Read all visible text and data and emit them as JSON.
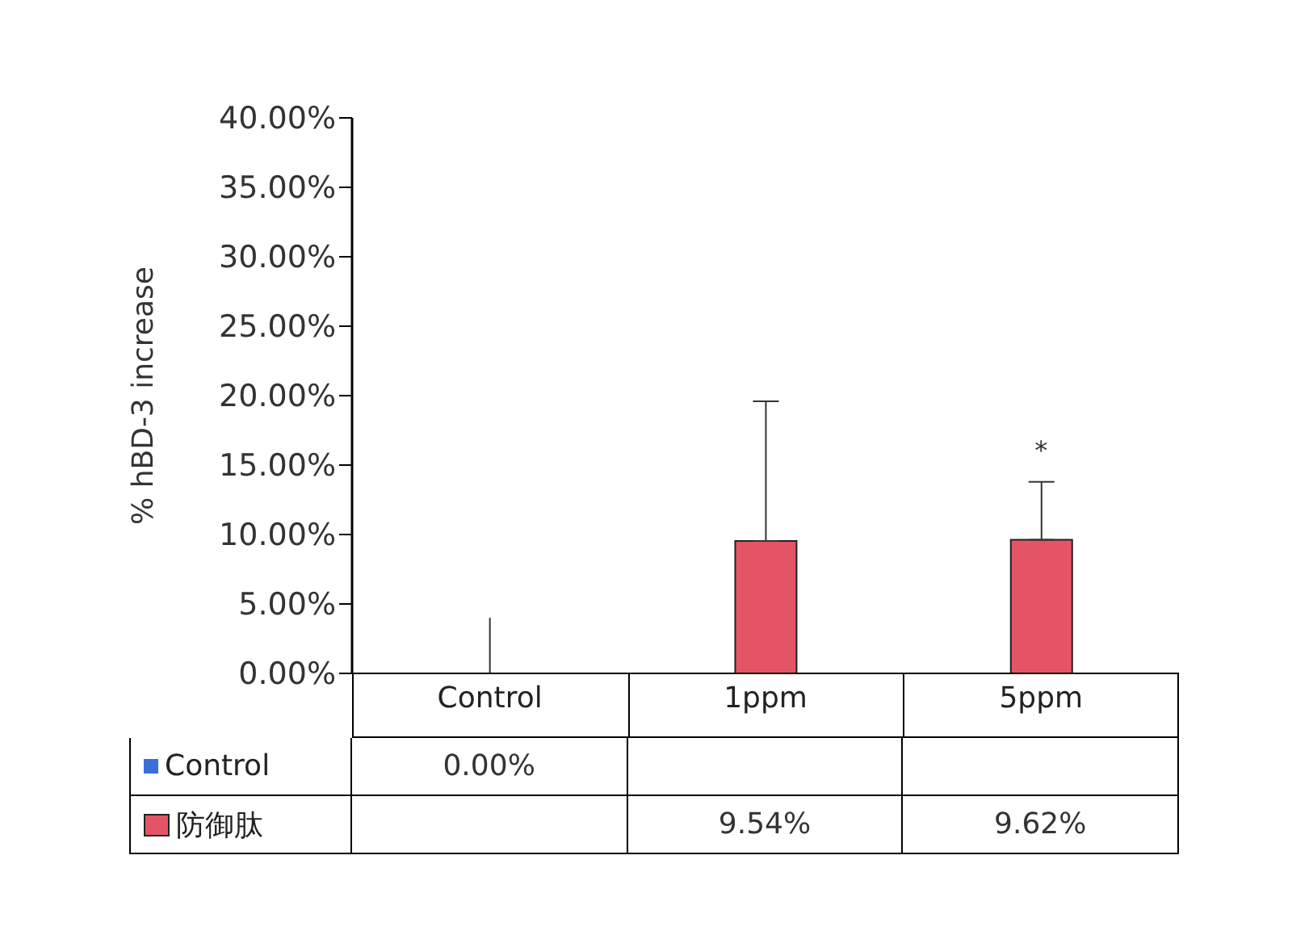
{
  "chart_data": {
    "type": "bar",
    "ylabel": "% hBD-3 increase",
    "categories": [
      "Control",
      "1ppm",
      "5ppm"
    ],
    "series": [
      {
        "name": "Control",
        "color": "#3a6fd8",
        "values": [
          0,
          null,
          null
        ],
        "errors": [
          [
            0,
            4.0
          ],
          null,
          null
        ],
        "value_labels": [
          "0.00%",
          null,
          null
        ]
      },
      {
        "name": "防御肽",
        "color": "#e35566",
        "values": [
          null,
          9.54,
          9.62
        ],
        "errors": [
          null,
          [
            9.54,
            19.6
          ],
          [
            9.62,
            13.8
          ]
        ],
        "value_labels": [
          null,
          "9.54%",
          "9.62%"
        ]
      }
    ],
    "ylim": [
      0,
      40
    ],
    "yticks": [
      {
        "value": 0,
        "label": "0.00%"
      },
      {
        "value": 5,
        "label": "5.00%"
      },
      {
        "value": 10,
        "label": "10.00%"
      },
      {
        "value": 15,
        "label": "15.00%"
      },
      {
        "value": 20,
        "label": "20.00%"
      },
      {
        "value": 25,
        "label": "25.00%"
      },
      {
        "value": 30,
        "label": "30.00%"
      },
      {
        "value": 35,
        "label": "35.00%"
      },
      {
        "value": 40,
        "label": "40.00%"
      }
    ],
    "annotations": [
      {
        "text": "*",
        "x": "5ppm",
        "y": 13.8
      }
    ],
    "legend": "bottom",
    "grid": false
  }
}
